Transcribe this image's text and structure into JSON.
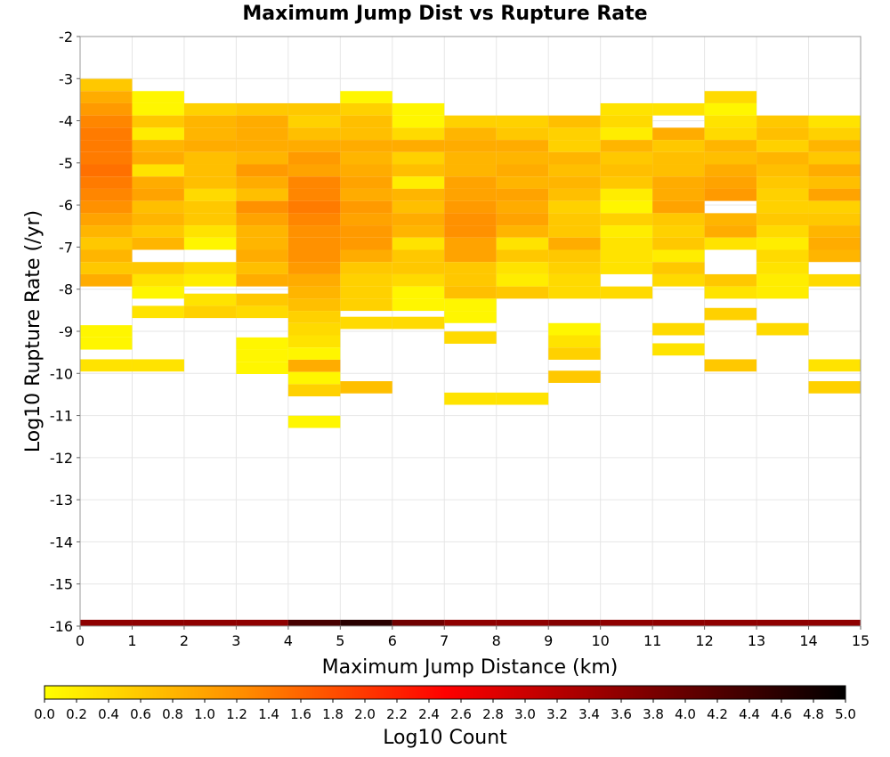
{
  "chart_data": {
    "type": "heatmap",
    "title": "Maximum Jump Dist vs Rupture Rate",
    "xlabel": "Maximum Jump Distance (km)",
    "ylabel": "Log10 Rupture Rate (/yr)",
    "colorbar_label": "Log10 Count",
    "xlim": [
      0,
      15
    ],
    "ylim": [
      -16,
      -2
    ],
    "x_ticks": [
      "0",
      "1",
      "2",
      "3",
      "4",
      "5",
      "6",
      "7",
      "8",
      "9",
      "10",
      "11",
      "12",
      "13",
      "14",
      "15"
    ],
    "y_ticks": [
      "-16",
      "-15",
      "-14",
      "-13",
      "-12",
      "-11",
      "-10",
      "-9",
      "-8",
      "-7",
      "-6",
      "-5",
      "-4",
      "-3",
      "-2"
    ],
    "colorbar_range": [
      0,
      5
    ],
    "colorbar_ticks": [
      "0.0",
      "0.2",
      "0.4",
      "0.6",
      "0.8",
      "1.0",
      "1.2",
      "1.4",
      "1.6",
      "1.8",
      "2.0",
      "2.2",
      "2.4",
      "2.6",
      "2.8",
      "3.0",
      "3.2",
      "3.4",
      "3.6",
      "3.8",
      "4.0",
      "4.2",
      "4.4",
      "4.6",
      "4.8",
      "5.0"
    ],
    "colormap": [
      "#ffff00",
      "#ff8c00",
      "#ff0000",
      "#7f0000",
      "#000000"
    ],
    "grid": true,
    "x_bin_width": 1,
    "y_bin_width": 0.29,
    "bottom_row": {
      "y": -15.95,
      "values": [
        3.6,
        3.6,
        3.6,
        3.6,
        4.3,
        4.6,
        3.9,
        3.6,
        3.6,
        3.7,
        3.6,
        3.6,
        3.6,
        3.6,
        3.6
      ]
    },
    "columns": [
      {
        "x": 0.5,
        "bins": [
          [
            -3.15,
            0.6
          ],
          [
            -3.44,
            0.9
          ],
          [
            -3.73,
            1.1
          ],
          [
            -4.02,
            1.3
          ],
          [
            -4.31,
            1.4
          ],
          [
            -4.6,
            1.4
          ],
          [
            -4.89,
            1.4
          ],
          [
            -5.18,
            1.5
          ],
          [
            -5.47,
            1.4
          ],
          [
            -5.76,
            1.3
          ],
          [
            -6.05,
            1.2
          ],
          [
            -6.34,
            1.0
          ],
          [
            -6.63,
            0.8
          ],
          [
            -6.92,
            0.6
          ],
          [
            -7.21,
            0.8
          ],
          [
            -7.5,
            0.6
          ],
          [
            -7.79,
            0.9
          ],
          [
            -9.0,
            0.1
          ],
          [
            -9.29,
            0.1
          ],
          [
            -9.81,
            0.3
          ]
        ]
      },
      {
        "x": 1.5,
        "bins": [
          [
            -3.44,
            0.1
          ],
          [
            -3.73,
            0.1
          ],
          [
            -4.02,
            0.6
          ],
          [
            -4.31,
            0.2
          ],
          [
            -4.6,
            0.8
          ],
          [
            -4.89,
            0.9
          ],
          [
            -5.18,
            0.3
          ],
          [
            -5.47,
            0.9
          ],
          [
            -5.76,
            1.0
          ],
          [
            -6.05,
            0.7
          ],
          [
            -6.34,
            0.8
          ],
          [
            -6.63,
            0.6
          ],
          [
            -6.92,
            0.8
          ],
          [
            -7.5,
            0.6
          ],
          [
            -7.79,
            0.3
          ],
          [
            -8.08,
            0.1
          ],
          [
            -8.54,
            0.3
          ],
          [
            -9.81,
            0.3
          ]
        ]
      },
      {
        "x": 2.5,
        "bins": [
          [
            -3.73,
            0.5
          ],
          [
            -4.02,
            0.8
          ],
          [
            -4.31,
            0.8
          ],
          [
            -4.6,
            0.9
          ],
          [
            -4.89,
            0.7
          ],
          [
            -5.18,
            0.7
          ],
          [
            -5.47,
            0.7
          ],
          [
            -5.76,
            0.4
          ],
          [
            -6.05,
            0.6
          ],
          [
            -6.34,
            0.6
          ],
          [
            -6.63,
            0.3
          ],
          [
            -6.92,
            0.1
          ],
          [
            -7.5,
            0.4
          ],
          [
            -7.79,
            0.2
          ],
          [
            -8.25,
            0.3
          ],
          [
            -8.54,
            0.5
          ]
        ]
      },
      {
        "x": 3.5,
        "bins": [
          [
            -3.73,
            0.6
          ],
          [
            -4.02,
            0.9
          ],
          [
            -4.31,
            0.9
          ],
          [
            -4.6,
            0.9
          ],
          [
            -4.89,
            0.8
          ],
          [
            -5.18,
            1.1
          ],
          [
            -5.47,
            0.9
          ],
          [
            -5.76,
            0.7
          ],
          [
            -6.05,
            1.2
          ],
          [
            -6.34,
            1.0
          ],
          [
            -6.63,
            0.8
          ],
          [
            -6.92,
            0.8
          ],
          [
            -7.21,
            0.9
          ],
          [
            -7.5,
            0.7
          ],
          [
            -7.79,
            0.9
          ],
          [
            -8.25,
            0.6
          ],
          [
            -8.54,
            0.4
          ],
          [
            -9.29,
            0.1
          ],
          [
            -9.58,
            0.1
          ],
          [
            -9.87,
            0.1
          ]
        ]
      },
      {
        "x": 4.5,
        "bins": [
          [
            -3.73,
            0.6
          ],
          [
            -4.02,
            0.5
          ],
          [
            -4.31,
            0.7
          ],
          [
            -4.6,
            0.9
          ],
          [
            -4.89,
            1.1
          ],
          [
            -5.18,
            1.0
          ],
          [
            -5.47,
            1.3
          ],
          [
            -5.76,
            1.3
          ],
          [
            -6.05,
            1.4
          ],
          [
            -6.34,
            1.3
          ],
          [
            -6.63,
            1.2
          ],
          [
            -6.92,
            1.2
          ],
          [
            -7.21,
            1.2
          ],
          [
            -7.5,
            1.1
          ],
          [
            -7.79,
            0.9
          ],
          [
            -8.08,
            0.8
          ],
          [
            -8.37,
            0.7
          ],
          [
            -8.66,
            0.5
          ],
          [
            -8.95,
            0.4
          ],
          [
            -9.24,
            0.3
          ],
          [
            -9.53,
            0.1
          ],
          [
            -9.82,
            0.9
          ],
          [
            -10.11,
            0.1
          ],
          [
            -10.4,
            0.5
          ],
          [
            -11.15,
            0.1
          ]
        ]
      },
      {
        "x": 5.5,
        "bins": [
          [
            -3.44,
            0.1
          ],
          [
            -3.73,
            0.5
          ],
          [
            -4.02,
            0.7
          ],
          [
            -4.31,
            0.7
          ],
          [
            -4.6,
            0.9
          ],
          [
            -4.89,
            0.8
          ],
          [
            -5.18,
            0.9
          ],
          [
            -5.47,
            1.0
          ],
          [
            -5.76,
            0.9
          ],
          [
            -6.05,
            1.1
          ],
          [
            -6.34,
            1.0
          ],
          [
            -6.63,
            1.1
          ],
          [
            -6.92,
            1.1
          ],
          [
            -7.21,
            0.9
          ],
          [
            -7.5,
            0.6
          ],
          [
            -7.79,
            0.5
          ],
          [
            -8.08,
            0.5
          ],
          [
            -8.37,
            0.5
          ],
          [
            -8.8,
            0.4
          ],
          [
            -10.33,
            0.7
          ]
        ]
      },
      {
        "x": 6.5,
        "bins": [
          [
            -3.73,
            0.1
          ],
          [
            -4.02,
            0.1
          ],
          [
            -4.31,
            0.4
          ],
          [
            -4.6,
            0.9
          ],
          [
            -4.89,
            0.5
          ],
          [
            -5.18,
            0.7
          ],
          [
            -5.47,
            0.2
          ],
          [
            -5.76,
            0.8
          ],
          [
            -6.05,
            0.7
          ],
          [
            -6.34,
            0.9
          ],
          [
            -6.63,
            0.8
          ],
          [
            -6.92,
            0.3
          ],
          [
            -7.21,
            0.6
          ],
          [
            -7.5,
            0.6
          ],
          [
            -7.79,
            0.4
          ],
          [
            -8.08,
            0.1
          ],
          [
            -8.37,
            0.1
          ],
          [
            -8.8,
            0.4
          ]
        ]
      },
      {
        "x": 7.5,
        "bins": [
          [
            -4.02,
            0.5
          ],
          [
            -4.31,
            0.8
          ],
          [
            -4.6,
            0.9
          ],
          [
            -4.89,
            0.8
          ],
          [
            -5.18,
            0.8
          ],
          [
            -5.47,
            1.0
          ],
          [
            -5.76,
            1.0
          ],
          [
            -6.05,
            1.1
          ],
          [
            -6.34,
            1.2
          ],
          [
            -6.63,
            1.2
          ],
          [
            -6.92,
            1.0
          ],
          [
            -7.21,
            1.0
          ],
          [
            -7.5,
            0.6
          ],
          [
            -7.79,
            0.6
          ],
          [
            -8.08,
            0.7
          ],
          [
            -8.37,
            0.1
          ],
          [
            -8.66,
            0.1
          ],
          [
            -9.15,
            0.4
          ],
          [
            -10.6,
            0.3
          ]
        ]
      },
      {
        "x": 8.5,
        "bins": [
          [
            -4.02,
            0.5
          ],
          [
            -4.31,
            0.6
          ],
          [
            -4.6,
            0.9
          ],
          [
            -4.89,
            0.8
          ],
          [
            -5.18,
            0.9
          ],
          [
            -5.47,
            0.8
          ],
          [
            -5.76,
            1.0
          ],
          [
            -6.05,
            0.9
          ],
          [
            -6.34,
            1.0
          ],
          [
            -6.63,
            0.8
          ],
          [
            -6.92,
            0.3
          ],
          [
            -7.21,
            0.6
          ],
          [
            -7.5,
            0.3
          ],
          [
            -7.79,
            0.2
          ],
          [
            -8.08,
            0.6
          ],
          [
            -10.6,
            0.3
          ]
        ]
      },
      {
        "x": 9.5,
        "bins": [
          [
            -4.02,
            0.7
          ],
          [
            -4.31,
            0.5
          ],
          [
            -4.6,
            0.5
          ],
          [
            -4.89,
            0.8
          ],
          [
            -5.18,
            0.7
          ],
          [
            -5.47,
            0.8
          ],
          [
            -5.76,
            0.7
          ],
          [
            -6.05,
            0.5
          ],
          [
            -6.34,
            0.6
          ],
          [
            -6.63,
            0.6
          ],
          [
            -6.92,
            0.9
          ],
          [
            -7.21,
            0.6
          ],
          [
            -7.5,
            0.5
          ],
          [
            -7.79,
            0.4
          ],
          [
            -8.08,
            0.4
          ],
          [
            -8.95,
            0.1
          ],
          [
            -9.24,
            0.3
          ],
          [
            -9.53,
            0.5
          ],
          [
            -10.08,
            0.6
          ]
        ]
      },
      {
        "x": 10.5,
        "bins": [
          [
            -3.73,
            0.3
          ],
          [
            -4.02,
            0.4
          ],
          [
            -4.31,
            0.2
          ],
          [
            -4.6,
            0.8
          ],
          [
            -4.89,
            0.6
          ],
          [
            -5.18,
            0.7
          ],
          [
            -5.47,
            0.6
          ],
          [
            -5.76,
            0.2
          ],
          [
            -6.05,
            0.1
          ],
          [
            -6.34,
            0.5
          ],
          [
            -6.63,
            0.2
          ],
          [
            -6.92,
            0.3
          ],
          [
            -7.21,
            0.3
          ],
          [
            -7.5,
            0.3
          ],
          [
            -8.08,
            0.4
          ]
        ]
      },
      {
        "x": 11.5,
        "bins": [
          [
            -3.73,
            0.3
          ],
          [
            -4.31,
            0.9
          ],
          [
            -4.6,
            0.6
          ],
          [
            -4.89,
            0.7
          ],
          [
            -5.18,
            0.7
          ],
          [
            -5.47,
            0.9
          ],
          [
            -5.76,
            0.9
          ],
          [
            -6.05,
            1.0
          ],
          [
            -6.34,
            0.6
          ],
          [
            -6.63,
            0.5
          ],
          [
            -6.92,
            0.6
          ],
          [
            -7.21,
            0.2
          ],
          [
            -7.5,
            0.6
          ],
          [
            -7.79,
            0.4
          ],
          [
            -8.95,
            0.4
          ],
          [
            -9.43,
            0.3
          ]
        ]
      },
      {
        "x": 12.5,
        "bins": [
          [
            -3.44,
            0.4
          ],
          [
            -3.73,
            0.1
          ],
          [
            -4.02,
            0.3
          ],
          [
            -4.31,
            0.4
          ],
          [
            -4.6,
            0.8
          ],
          [
            -4.89,
            0.7
          ],
          [
            -5.18,
            0.9
          ],
          [
            -5.47,
            1.0
          ],
          [
            -5.76,
            1.1
          ],
          [
            -6.34,
            0.8
          ],
          [
            -6.63,
            0.9
          ],
          [
            -6.92,
            0.3
          ],
          [
            -7.79,
            0.6
          ],
          [
            -8.08,
            0.3
          ],
          [
            -8.59,
            0.5
          ],
          [
            -9.81,
            0.6
          ]
        ]
      },
      {
        "x": 13.5,
        "bins": [
          [
            -4.02,
            0.6
          ],
          [
            -4.31,
            0.7
          ],
          [
            -4.6,
            0.5
          ],
          [
            -4.89,
            0.8
          ],
          [
            -5.18,
            0.7
          ],
          [
            -5.47,
            0.6
          ],
          [
            -5.76,
            0.5
          ],
          [
            -6.05,
            0.5
          ],
          [
            -6.34,
            0.6
          ],
          [
            -6.63,
            0.4
          ],
          [
            -6.92,
            0.2
          ],
          [
            -7.21,
            0.4
          ],
          [
            -7.5,
            0.3
          ],
          [
            -7.79,
            0.2
          ],
          [
            -8.08,
            0.2
          ],
          [
            -8.95,
            0.4
          ]
        ]
      },
      {
        "x": 14.5,
        "bins": [
          [
            -4.02,
            0.3
          ],
          [
            -4.31,
            0.5
          ],
          [
            -4.6,
            0.8
          ],
          [
            -4.89,
            0.6
          ],
          [
            -5.18,
            0.9
          ],
          [
            -5.47,
            0.7
          ],
          [
            -5.76,
            1.0
          ],
          [
            -6.05,
            0.5
          ],
          [
            -6.34,
            0.6
          ],
          [
            -6.63,
            0.8
          ],
          [
            -6.92,
            0.9
          ],
          [
            -7.21,
            0.8
          ],
          [
            -7.79,
            0.4
          ],
          [
            -9.81,
            0.3
          ],
          [
            -10.33,
            0.5
          ]
        ]
      }
    ]
  }
}
